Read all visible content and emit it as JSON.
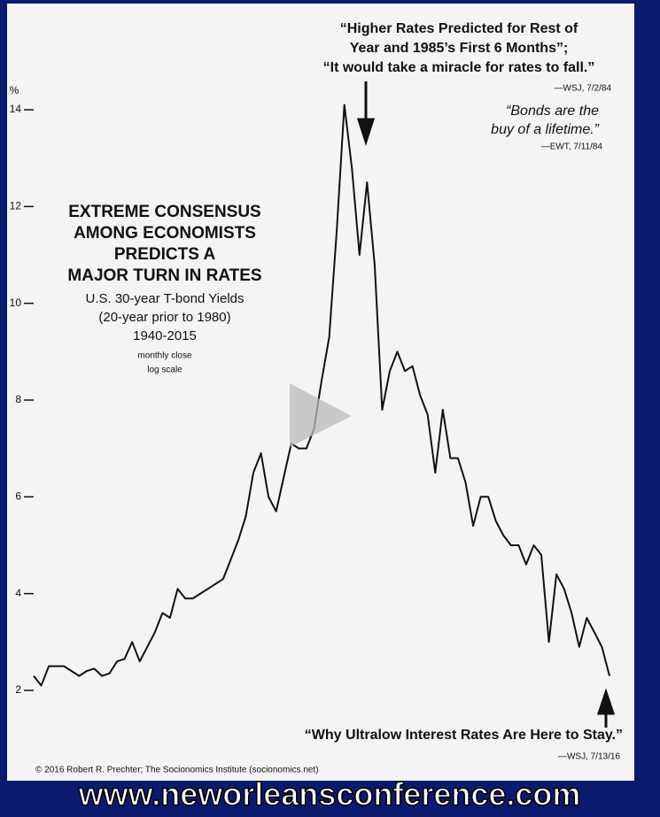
{
  "chart_data": {
    "type": "line",
    "title_lines": [
      "EXTREME CONSENSUS",
      "AMONG ECONOMISTS",
      "PREDICTS A",
      "MAJOR TURN IN RATES"
    ],
    "subtitle_lines": [
      "U.S. 30-year T-bond Yields",
      "(20-year prior to 1980)",
      "1940-2015"
    ],
    "note_lines": [
      "monthly close",
      "log scale"
    ],
    "y_label": "%",
    "color": "#111111",
    "values": [
      2.3,
      2.1,
      2.5,
      2.5,
      2.5,
      2.4,
      2.3,
      2.4,
      2.45,
      2.3,
      2.35,
      2.6,
      2.65,
      3.0,
      2.6,
      2.9,
      3.2,
      3.6,
      3.5,
      4.1,
      3.9,
      3.9,
      4.0,
      4.1,
      4.2,
      4.3,
      4.7,
      5.1,
      5.6,
      6.5,
      6.9,
      6.0,
      5.7,
      6.4,
      7.1,
      7.0,
      7.0,
      7.4,
      8.4,
      9.3,
      11.5,
      14.1,
      12.8,
      11.0,
      12.5,
      10.8,
      7.8,
      8.6,
      9.0,
      8.6,
      8.7,
      8.1,
      7.7,
      6.5,
      7.8,
      6.8,
      6.8,
      6.3,
      5.4,
      6.0,
      6.0,
      5.5,
      5.2,
      5.0,
      5.0,
      4.6,
      5.0,
      4.8,
      3.0,
      4.4,
      4.1,
      3.6,
      2.9,
      3.5,
      3.2,
      2.9,
      2.3
    ],
    "ylim": [
      1.8,
      14.6
    ],
    "yticks": [
      2,
      4,
      6,
      8,
      10,
      12,
      14
    ],
    "annotations": [
      {
        "lines": [
          "“Higher Rates Predicted for Rest of",
          "Year and 1985’s First 6 Months”;",
          "“It would take a miracle for rates to fall.”"
        ],
        "source": "—WSJ, 7/2/84"
      },
      {
        "lines": [
          "“Bonds are the",
          "buy of a lifetime.”"
        ],
        "source": "—EWT, 7/11/84"
      },
      {
        "lines": [
          "“Why Ultralow Interest Rates Are Here to Stay.”"
        ],
        "source": "—WSJ, 7/13/16"
      }
    ],
    "credit": "© 2016 Robert R. Prechter; The Socionomics Institute (socionomics.net)"
  },
  "watermark": "www.neworleansconference.com"
}
